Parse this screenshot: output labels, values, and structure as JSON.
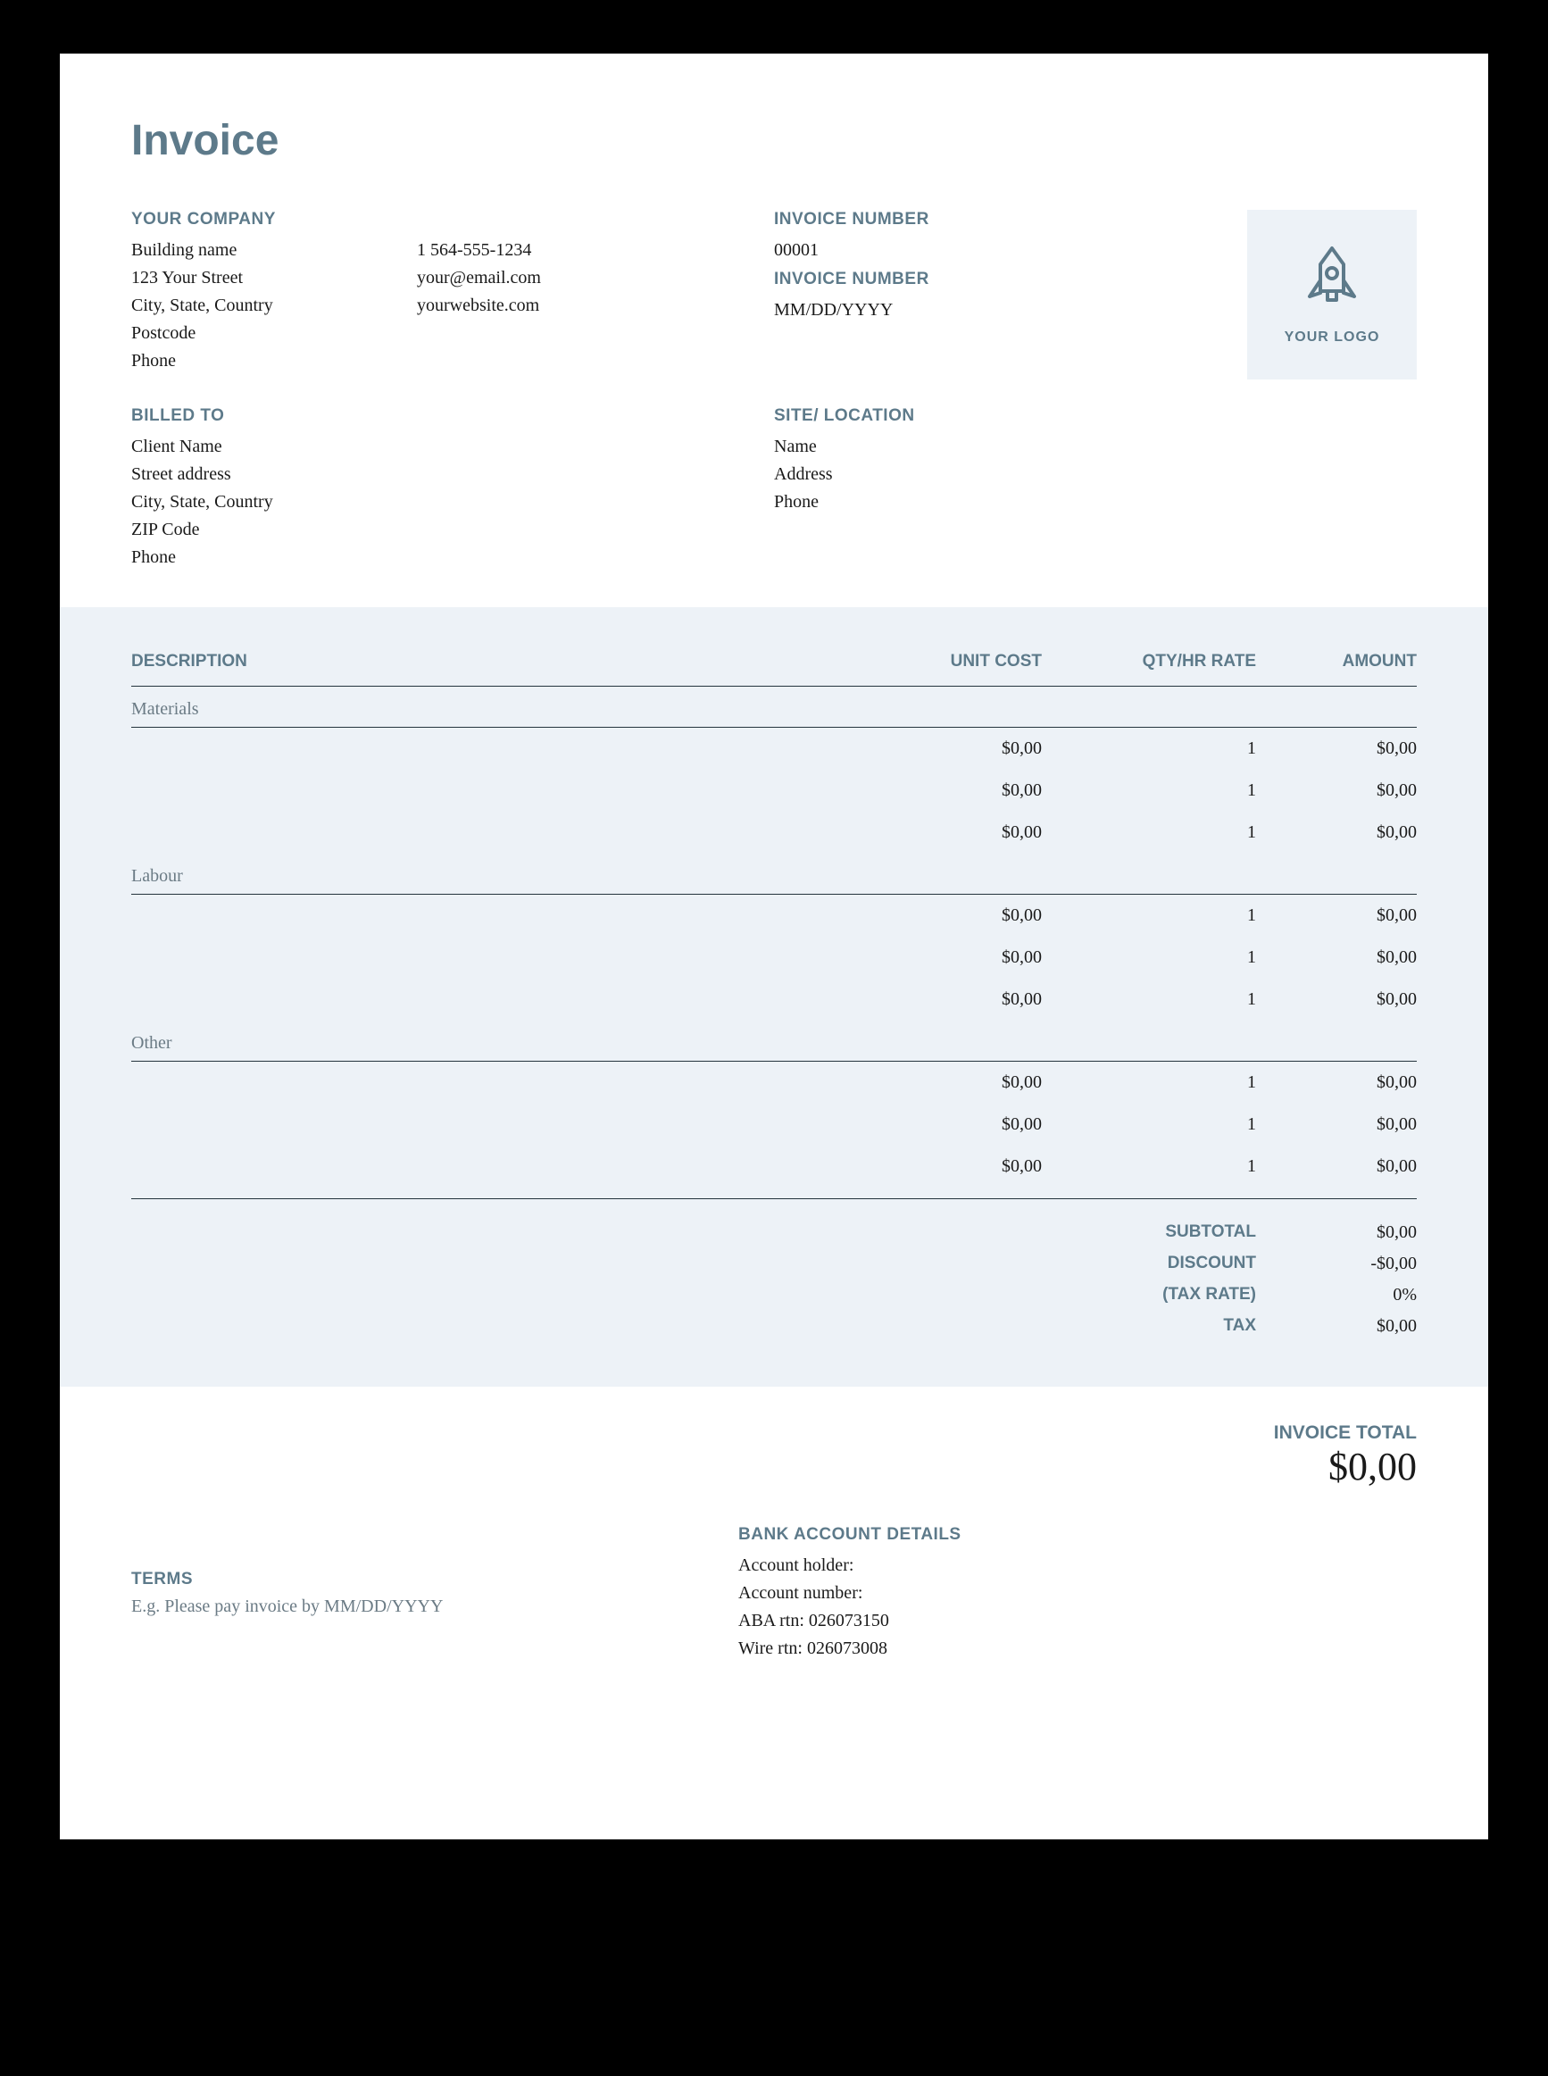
{
  "colors": {
    "page_bg": "#000000",
    "paper_bg": "#ffffff",
    "panel_bg": "#edf2f7",
    "accent": "#5d7a8a",
    "text": "#1a1a1a",
    "muted": "#6b7b85",
    "rule": "#24343d"
  },
  "title": "Invoice",
  "company": {
    "label": "YOUR COMPANY",
    "lines": [
      "Building name",
      "123 Your Street",
      "City, State, Country",
      "Postcode",
      "Phone"
    ]
  },
  "contact": {
    "lines": [
      "1 564-555-1234",
      "your@email.com",
      "yourwebsite.com"
    ]
  },
  "meta": {
    "number_label": "INVOICE NUMBER",
    "number": "00001",
    "date_label": "INVOICE NUMBER",
    "date": "MM/DD/YYYY"
  },
  "logo_caption": "YOUR LOGO",
  "billed": {
    "label": "BILLED TO",
    "lines": [
      "Client Name",
      "Street address",
      "City, State, Country",
      "ZIP Code",
      "Phone"
    ]
  },
  "site": {
    "label": "SITE/ LOCATION",
    "lines": [
      "Name",
      "Address",
      "Phone"
    ]
  },
  "table": {
    "headers": {
      "desc": "DESCRIPTION",
      "unit": "UNIT COST",
      "qty": "QTY/HR RATE",
      "amount": "AMOUNT"
    },
    "groups": [
      {
        "label": "Materials",
        "rows": [
          {
            "desc": "",
            "unit": "$0,00",
            "qty": "1",
            "amount": "$0,00"
          },
          {
            "desc": "",
            "unit": "$0,00",
            "qty": "1",
            "amount": "$0,00"
          },
          {
            "desc": "",
            "unit": "$0,00",
            "qty": "1",
            "amount": "$0,00"
          }
        ]
      },
      {
        "label": "Labour",
        "rows": [
          {
            "desc": "",
            "unit": "$0,00",
            "qty": "1",
            "amount": "$0,00"
          },
          {
            "desc": "",
            "unit": "$0,00",
            "qty": "1",
            "amount": "$0,00"
          },
          {
            "desc": "",
            "unit": "$0,00",
            "qty": "1",
            "amount": "$0,00"
          }
        ]
      },
      {
        "label": "Other",
        "rows": [
          {
            "desc": "",
            "unit": "$0,00",
            "qty": "1",
            "amount": "$0,00"
          },
          {
            "desc": "",
            "unit": "$0,00",
            "qty": "1",
            "amount": "$0,00"
          },
          {
            "desc": "",
            "unit": "$0,00",
            "qty": "1",
            "amount": "$0,00"
          }
        ]
      }
    ],
    "summary": [
      {
        "label": "SUBTOTAL",
        "value": "$0,00"
      },
      {
        "label": "DISCOUNT",
        "value": "-$0,00"
      },
      {
        "label": "(TAX RATE)",
        "value": "0%"
      },
      {
        "label": "TAX",
        "value": "$0,00"
      }
    ]
  },
  "total": {
    "label": "INVOICE TOTAL",
    "value": "$0,00"
  },
  "bank": {
    "label": "BANK ACCOUNT DETAILS",
    "lines": [
      "Account holder:",
      "Account number:",
      "ABA rtn: 026073150",
      "Wire rtn: 026073008"
    ]
  },
  "terms": {
    "label": "TERMS",
    "text": "E.g. Please pay invoice by MM/DD/YYYY"
  }
}
